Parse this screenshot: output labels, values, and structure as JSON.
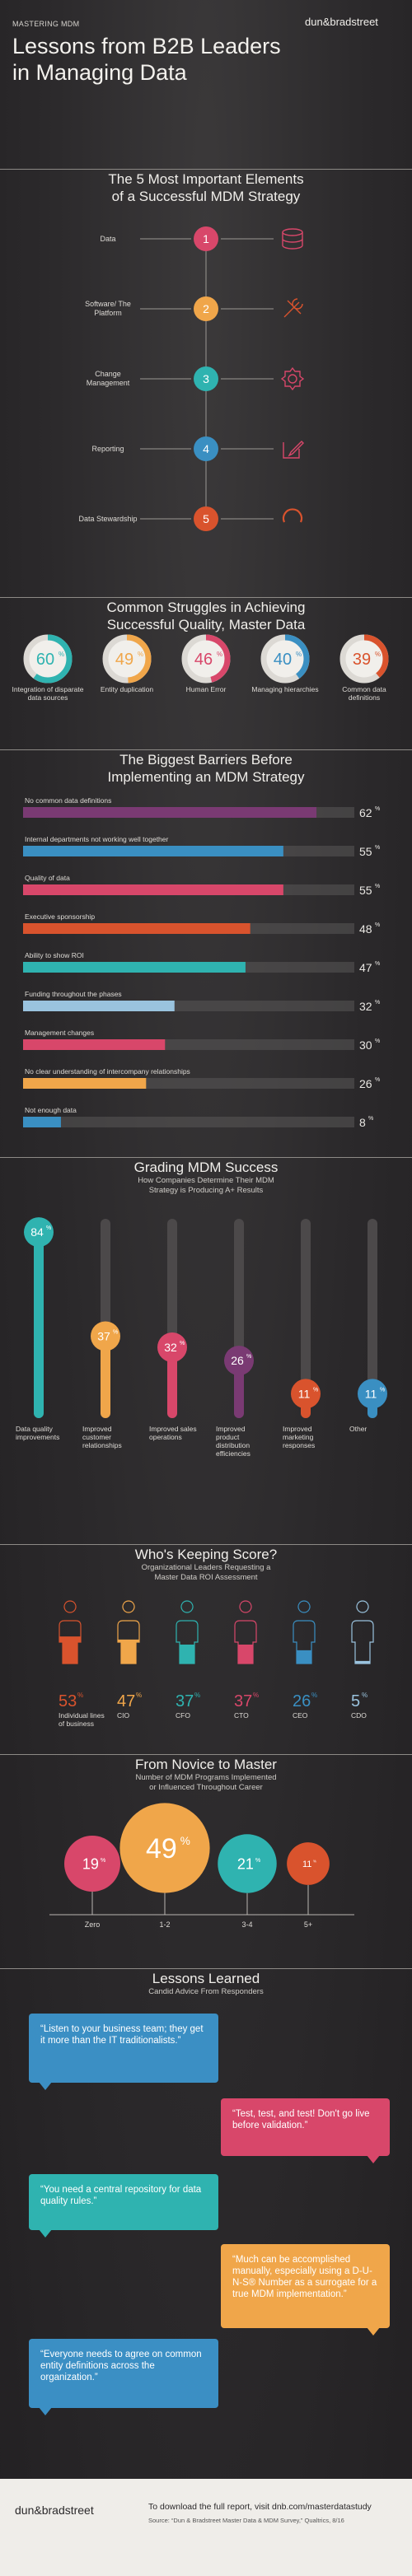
{
  "header": {
    "kicker": "MASTERING MDM",
    "title_line1": "Lessons from B2B Leaders",
    "title_line2": "in Managing Data",
    "brand_left": "dun",
    "brand_right": "bradstreet"
  },
  "elements": {
    "title_line1": "The 5 Most Important Elements",
    "title_line2": "of a Successful MDM Strategy",
    "items": [
      {
        "num": "1",
        "label": "Data",
        "color": "#d8476a",
        "icon": "database-icon"
      },
      {
        "num": "2",
        "label": "Software/ The Platform",
        "color": "#f0a64a",
        "icon": "tools-icon"
      },
      {
        "num": "3",
        "label": "Change Management",
        "color": "#2fb3b0",
        "icon": "gear-icon"
      },
      {
        "num": "4",
        "label": "Reporting",
        "color": "#3a8fc2",
        "icon": "edit-icon"
      },
      {
        "num": "5",
        "label": "Data Stewardship",
        "color": "#d9532d",
        "icon": "spinner-icon"
      }
    ]
  },
  "struggles": {
    "title_line1": "Common Struggles in Achieving",
    "title_line2": "Successful Quality, Master Data",
    "items": [
      {
        "value": 60,
        "label": "Integration of disparate data sources",
        "color": "#2fb3b0"
      },
      {
        "value": 49,
        "label": "Entity duplication",
        "color": "#f0a64a"
      },
      {
        "value": 46,
        "label": "Human Error",
        "color": "#d8476a"
      },
      {
        "value": 40,
        "label": "Managing hierarchies",
        "color": "#3a8fc2"
      },
      {
        "value": 39,
        "label": "Common data definitions",
        "color": "#d9532d"
      }
    ]
  },
  "barriers": {
    "title_line1": "The Biggest Barriers Before",
    "title_line2": "Implementing an MDM Strategy"
  },
  "grading": {
    "title": "Grading MDM Success",
    "sub_line1": "How Companies Determine Their MDM",
    "sub_line2": "Strategy is Producing A+ Results"
  },
  "scorekeeping": {
    "title": "Who's Keeping Score?",
    "sub_line1": "Organizational Leaders Requesting a",
    "sub_line2": "Master Data ROI Assessment"
  },
  "novice": {
    "title": "From Novice to Master",
    "sub_line1": "Number of MDM Programs Implemented",
    "sub_line2": "or Influenced Throughout Career"
  },
  "lessons": {
    "title": "Lessons Learned",
    "sub": "Candid Advice From Responders",
    "quotes": [
      {
        "text": "“Listen to your business team; they get it more than the IT traditionalists.”",
        "color": "#3b8fc4"
      },
      {
        "text": "“Test, test, and test! Don't go live before validation.”",
        "color": "#d8476a"
      },
      {
        "text": "“You need a central repository for data quality rules.”",
        "color": "#2fb3b0"
      },
      {
        "text": "“Much can be accomplished manually, especially using a D-U-N-S® Number as a surrogate for a true MDM implementation.”",
        "color": "#f0a64a"
      },
      {
        "text": "“Everyone needs to agree on common entity definitions across the organization.”",
        "color": "#3b8fc4"
      }
    ]
  },
  "footer": {
    "brand_left": "dun",
    "brand_right": "bradstreet",
    "cta": "To download the full report, visit dnb.com/masterdatastudy",
    "source": "Source: “Dun & Bradstreet Master Data & MDM Survey,” Qualtrics, 8/16"
  },
  "chart_data": [
    {
      "type": "bar",
      "orientation": "horizontal",
      "unit": "%",
      "categories": [
        "No common data definitions",
        "Internal departments not working well together",
        "Quality of data",
        "Executive sponsorship",
        "Ability to show ROI",
        "Funding throughout the phases",
        "Management changes",
        "No clear understanding of intercompany relationships",
        "Not enough data"
      ],
      "values": [
        62,
        55,
        55,
        48,
        47,
        32,
        30,
        26,
        8
      ],
      "colors": [
        "#7a3a73",
        "#3a8fc2",
        "#d8476a",
        "#d9532d",
        "#2fb3b0",
        "#9ac3de",
        "#d8476a",
        "#f0a64a",
        "#3a8fc2"
      ],
      "xlim": [
        0,
        70
      ]
    },
    {
      "type": "bar",
      "orientation": "vertical",
      "style": "lollipop",
      "unit": "%",
      "categories": [
        "Data quality improvements",
        "Improved customer relationships",
        "Improved sales operations",
        "Improved product distribution efficiencies",
        "Improved marketing responses",
        "Other"
      ],
      "values": [
        84,
        37,
        32,
        26,
        11,
        11
      ],
      "colors": [
        "#2fb3b0",
        "#f0a64a",
        "#d8476a",
        "#7a3a73",
        "#d9532d",
        "#3a8fc2"
      ],
      "ylim": [
        0,
        90
      ]
    },
    {
      "type": "bar",
      "style": "pictogram",
      "unit": "%",
      "categories": [
        "Individual lines of business",
        "CIO",
        "CFO",
        "CTO",
        "CEO",
        "CDO"
      ],
      "values": [
        53,
        47,
        37,
        37,
        26,
        5
      ],
      "colors": [
        "#d9532d",
        "#f0a64a",
        "#2fb3b0",
        "#d8476a",
        "#3a8fc2",
        "#9ac3de"
      ]
    },
    {
      "type": "scatter",
      "style": "bubble",
      "unit": "%",
      "categories": [
        "Zero",
        "1-2",
        "3-4",
        "5+"
      ],
      "values": [
        19,
        49,
        21,
        11
      ],
      "colors": [
        "#d8476a",
        "#f0a64a",
        "#2fb3b0",
        "#d9532d"
      ]
    }
  ]
}
